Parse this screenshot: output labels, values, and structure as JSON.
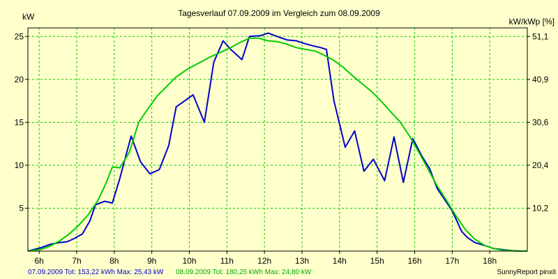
{
  "chart_data": {
    "type": "line",
    "title": "Tagesverlauf 07.09.2009 im Vergleich zum 08.09.2009",
    "ylabel_left": "kW",
    "ylabel_right": "kW/kWp [%]",
    "x_ticks": [
      "6h",
      "7h",
      "8h",
      "9h",
      "10h",
      "11h",
      "12h",
      "13h",
      "14h",
      "15h",
      "16h",
      "17h",
      "18h"
    ],
    "x_tick_values": [
      6,
      7,
      8,
      9,
      10,
      11,
      12,
      13,
      14,
      15,
      16,
      17,
      18
    ],
    "xlim": [
      5.7,
      19.0
    ],
    "ylim": [
      0,
      26
    ],
    "y_ticks": [
      5,
      10,
      15,
      20,
      25
    ],
    "y2_ticks": [
      "10,2",
      "20,4",
      "30,6",
      "40,9",
      "51,1"
    ],
    "grid": true,
    "series": [
      {
        "name": "07.09.2009",
        "color": "#0000cc",
        "x": [
          5.7,
          6.05,
          6.3,
          6.55,
          6.75,
          6.95,
          7.15,
          7.35,
          7.5,
          7.75,
          7.95,
          8.15,
          8.45,
          8.7,
          8.95,
          9.2,
          9.45,
          9.65,
          10.1,
          10.4,
          10.65,
          10.9,
          11.1,
          11.4,
          11.6,
          11.9,
          12.1,
          12.4,
          12.6,
          12.85,
          13.05,
          13.3,
          13.5,
          13.65,
          13.85,
          14.15,
          14.4,
          14.65,
          14.9,
          15.2,
          15.45,
          15.7,
          15.95,
          16.2,
          16.4,
          16.6,
          16.8,
          17.0,
          17.25,
          17.4,
          17.6,
          17.9,
          18.1,
          18.4,
          18.6,
          18.8,
          19.0
        ],
        "y": [
          0,
          0.4,
          0.8,
          1.0,
          1.1,
          1.5,
          2.0,
          3.5,
          5.4,
          5.8,
          5.6,
          8.5,
          13.4,
          10.4,
          9.0,
          9.5,
          12.3,
          16.8,
          18.2,
          15.0,
          22.0,
          24.5,
          23.5,
          22.3,
          25.0,
          25.1,
          25.4,
          24.9,
          24.6,
          24.5,
          24.2,
          23.9,
          23.7,
          23.5,
          17.5,
          12.1,
          14.0,
          9.3,
          10.7,
          8.2,
          13.3,
          8.0,
          13.1,
          11.0,
          9.6,
          7.3,
          6.0,
          4.7,
          2.3,
          1.6,
          1.0,
          0.6,
          0.3,
          0.15,
          0.05,
          0,
          0
        ]
      },
      {
        "name": "08.09.2009",
        "color": "#00cc00",
        "x": [
          5.7,
          6.05,
          6.3,
          6.55,
          6.8,
          7.05,
          7.3,
          7.55,
          7.75,
          7.95,
          8.15,
          8.4,
          8.65,
          8.9,
          9.15,
          9.4,
          9.65,
          9.95,
          10.25,
          10.55,
          10.85,
          11.1,
          11.35,
          11.6,
          11.85,
          12.1,
          12.35,
          12.6,
          12.85,
          13.1,
          13.35,
          13.6,
          13.85,
          14.1,
          14.35,
          14.6,
          14.85,
          15.1,
          15.35,
          15.6,
          15.85,
          16.1,
          16.35,
          16.6,
          16.85,
          17.1,
          17.35,
          17.6,
          17.85,
          18.1,
          18.35,
          18.6,
          18.85,
          19.0
        ],
        "y": [
          0,
          0.2,
          0.6,
          1.2,
          2.0,
          3.0,
          4.2,
          5.8,
          7.6,
          9.8,
          9.7,
          11.5,
          15.0,
          16.6,
          18.1,
          19.2,
          20.3,
          21.2,
          21.9,
          22.6,
          23.2,
          23.7,
          24.3,
          24.8,
          24.8,
          24.5,
          24.4,
          24.1,
          23.7,
          23.5,
          23.3,
          22.8,
          22.2,
          21.4,
          20.4,
          19.5,
          18.6,
          17.5,
          16.3,
          15.1,
          13.5,
          11.6,
          9.6,
          7.6,
          5.9,
          4.1,
          2.5,
          1.4,
          0.7,
          0.3,
          0.1,
          0.03,
          0,
          0
        ]
      }
    ]
  },
  "footer": {
    "series1_text": "07.09.2009 Tot: 153,22 kWh Max: 25,43 kW",
    "series2_text": "08.09.2009 Tot: 180,25 kWh Max: 24,80 kW",
    "credit": "SunnyReport pinxit"
  },
  "colors": {
    "background": "#ffffcc",
    "plot_background": "#ffffcc",
    "grid": "#00cc00",
    "axis": "#000000"
  }
}
